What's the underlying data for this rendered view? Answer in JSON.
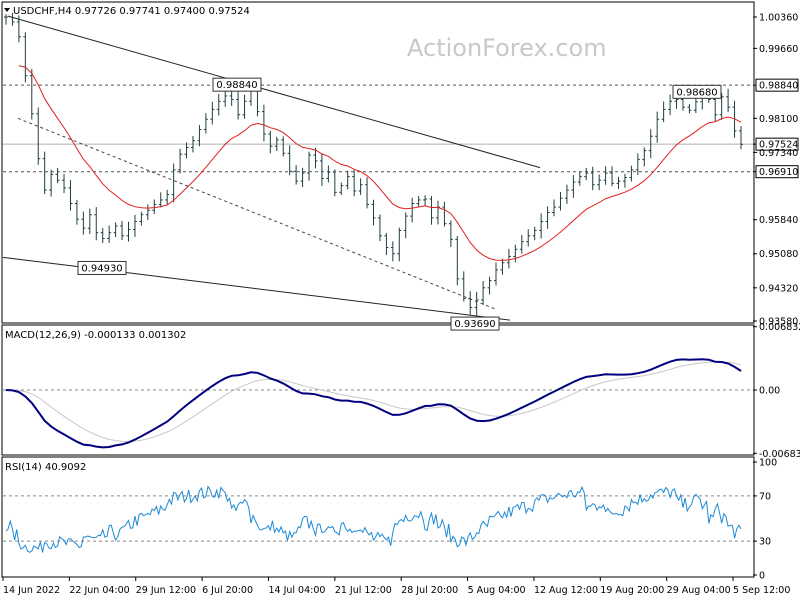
{
  "header": {
    "symbol_line": "USDCHF,H4  0.97726 0.97741 0.97400 0.97524",
    "watermark": "ActionForex.com",
    "macd_label": "MACD(12,26,9) -0.000133 0.001302",
    "rsi_label": "RSI(14) 40.9092"
  },
  "colors": {
    "price_bars": "#1f3e3e",
    "moving_average": "#e02020",
    "macd_line": "#000080",
    "signal_line": "#c8c8c8",
    "rsi_line": "#1e8ad6",
    "grid_dash": "#888888"
  },
  "chart_data": [
    {
      "type": "line",
      "name": "price",
      "title": "USDCHF,H4",
      "y_ticks": [
        "1.00360",
        "0.99660",
        "0.98840",
        "0.98100",
        "0.97524",
        "0.97340",
        "0.96910",
        "0.95840",
        "0.95080",
        "0.94320",
        "0.93580"
      ],
      "ylim": [
        0.9358,
        1.0065
      ],
      "levels": [
        0.9884,
        0.9691
      ],
      "last_price": 0.97524,
      "last_price_label": "0.97524",
      "annotations": [
        {
          "label": "0.98840",
          "value": 0.9884
        },
        {
          "label": "0.94930",
          "value": 0.9493
        },
        {
          "label": "0.93690",
          "value": 0.9369
        },
        {
          "label": "0.98680",
          "value": 0.9868
        }
      ],
      "x_labels": [
        "14 Jun 2022",
        "22 Jun 04:00",
        "29 Jun 12:00",
        "6 Jul 20:00",
        "14 Jul 04:00",
        "21 Jul 12:00",
        "28 Jul 20:00",
        "5 Aug 04:00",
        "12 Aug 12:00",
        "19 Aug 20:00",
        "29 Aug 04:00",
        "5 Sep 12:00"
      ],
      "close_series": [
        1.0036,
        1.0025,
        0.9992,
        0.9905,
        0.982,
        0.972,
        0.965,
        0.9685,
        0.9672,
        0.9655,
        0.962,
        0.9585,
        0.9565,
        0.9595,
        0.9555,
        0.9542,
        0.9555,
        0.957,
        0.9548,
        0.9562,
        0.958,
        0.9595,
        0.9605,
        0.9618,
        0.9628,
        0.964,
        0.9695,
        0.973,
        0.9745,
        0.976,
        0.9785,
        0.9808,
        0.983,
        0.9848,
        0.986,
        0.9852,
        0.9818,
        0.9848,
        0.9872,
        0.9825,
        0.9775,
        0.9748,
        0.9762,
        0.9732,
        0.9692,
        0.967,
        0.9688,
        0.9728,
        0.9715,
        0.9676,
        0.969,
        0.9645,
        0.966,
        0.968,
        0.9648,
        0.9662,
        0.9618,
        0.9588,
        0.9548,
        0.9522,
        0.9508,
        0.956,
        0.9592,
        0.962,
        0.9628,
        0.963,
        0.9588,
        0.9612,
        0.9575,
        0.954,
        0.9452,
        0.9408,
        0.9388,
        0.9405,
        0.9432,
        0.9448,
        0.9472,
        0.9488,
        0.9502,
        0.9518,
        0.9535,
        0.9548,
        0.956,
        0.958,
        0.96,
        0.9612,
        0.9632,
        0.965,
        0.9668,
        0.968,
        0.9688,
        0.9662,
        0.9672,
        0.9688,
        0.9665,
        0.967,
        0.9678,
        0.9695,
        0.9718,
        0.9738,
        0.977,
        0.9808,
        0.983,
        0.9848,
        0.9852,
        0.9835,
        0.9828,
        0.9847,
        0.9862,
        0.9852,
        0.9818,
        0.9858,
        0.9835,
        0.9782,
        0.9752
      ]
    },
    {
      "type": "line",
      "name": "MACD(12,26,9)",
      "values_label": "-0.000133 0.001302",
      "y_ticks": [
        "0.006832",
        "0.00",
        "-0.00683"
      ],
      "ylim": [
        -0.0068,
        0.0068
      ]
    },
    {
      "type": "line",
      "name": "RSI(14)",
      "values_label": "40.9092",
      "y_ticks": [
        "100",
        "70",
        "30",
        "0"
      ],
      "ylim": [
        0,
        100
      ],
      "last_value": 40.9092
    }
  ]
}
